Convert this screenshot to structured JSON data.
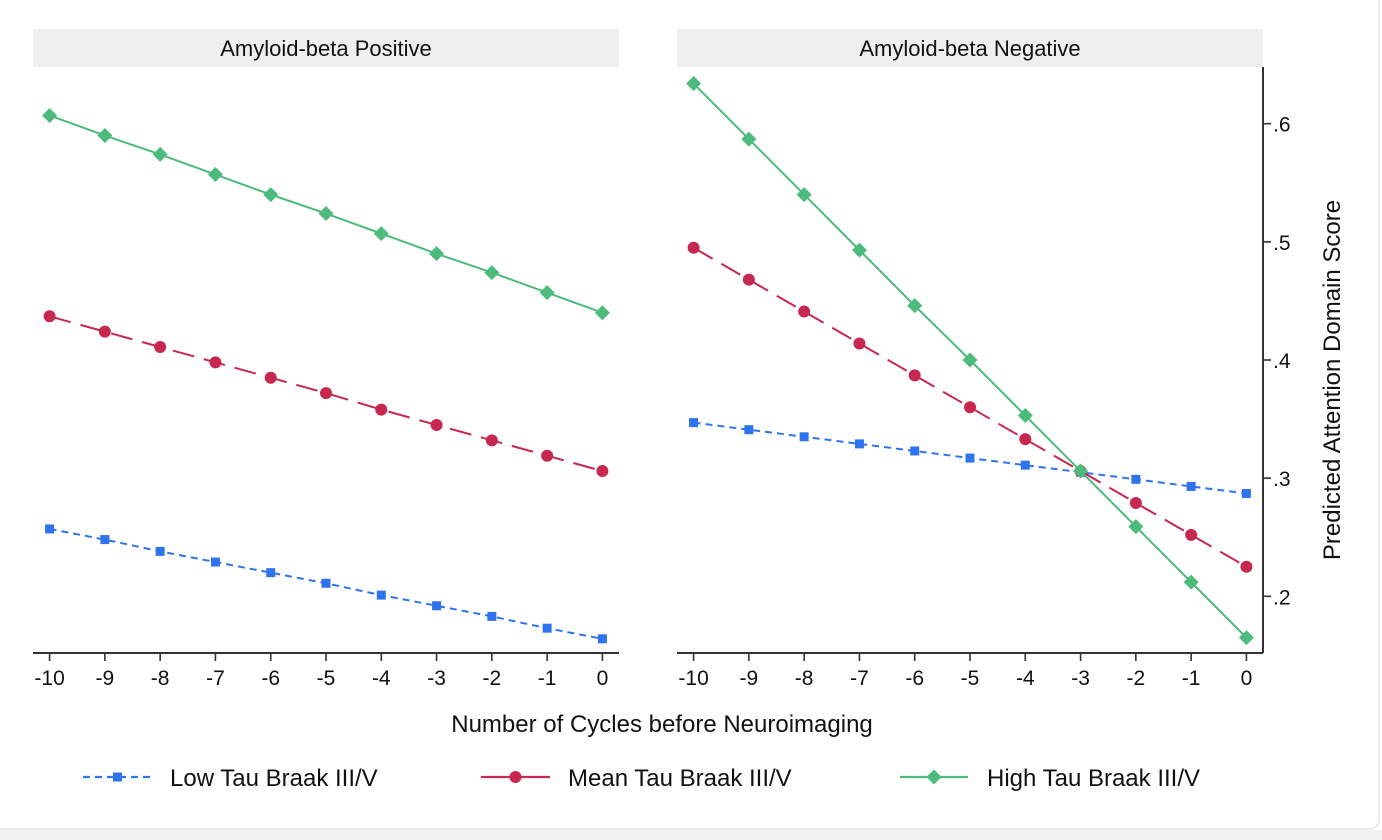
{
  "chart_data": {
    "type": "line",
    "xlabel": "Number of Cycles before Neuroimaging",
    "ylabel": "Predicted Attention Domain Score",
    "x": [
      -10,
      -9,
      -8,
      -7,
      -6,
      -5,
      -4,
      -3,
      -2,
      -1,
      0
    ],
    "x_tick_labels": [
      "-10",
      "-9",
      "-8",
      "-7",
      "-6",
      "-5",
      "-4",
      "-3",
      "-2",
      "-1",
      "0"
    ],
    "y_ticks": [
      0.2,
      0.3,
      0.4,
      0.5,
      0.6
    ],
    "y_tick_labels": [
      ".2",
      ".3",
      ".4",
      ".5",
      ".6"
    ],
    "ylim": [
      0.152,
      0.648
    ],
    "xlim": [
      -10.3,
      0.3
    ],
    "grid": false,
    "legend_position": "bottom",
    "series_styles": [
      {
        "name": "Low Tau Braak III/V",
        "color": "#2f74ee",
        "marker": "square",
        "dash": "short-dash"
      },
      {
        "name": "Mean Tau Braak III/V",
        "color": "#c6284f",
        "marker": "circle",
        "dash": "long-dash"
      },
      {
        "name": "High Tau Braak III/V",
        "color": "#4cbb7b",
        "marker": "diamond",
        "dash": "solid"
      }
    ],
    "panels": [
      {
        "title": "Amyloid-beta Positive",
        "series": [
          {
            "name": "Low Tau Braak III/V",
            "values": [
              0.257,
              0.248,
              0.238,
              0.229,
              0.22,
              0.211,
              0.201,
              0.192,
              0.183,
              0.173,
              0.164
            ]
          },
          {
            "name": "Mean Tau Braak III/V",
            "values": [
              0.437,
              0.424,
              0.411,
              0.398,
              0.385,
              0.372,
              0.358,
              0.345,
              0.332,
              0.319,
              0.306
            ]
          },
          {
            "name": "High Tau Braak III/V",
            "values": [
              0.607,
              0.59,
              0.574,
              0.557,
              0.54,
              0.524,
              0.507,
              0.49,
              0.474,
              0.457,
              0.44
            ]
          }
        ]
      },
      {
        "title": "Amyloid-beta Negative",
        "series": [
          {
            "name": "Low Tau Braak III/V",
            "values": [
              0.347,
              0.341,
              0.335,
              0.329,
              0.323,
              0.317,
              0.311,
              0.305,
              0.299,
              0.293,
              0.287
            ]
          },
          {
            "name": "Mean Tau Braak III/V",
            "values": [
              0.495,
              0.468,
              0.441,
              0.414,
              0.387,
              0.36,
              0.333,
              0.306,
              0.279,
              0.252,
              0.225
            ]
          },
          {
            "name": "High Tau Braak III/V",
            "values": [
              0.634,
              0.587,
              0.54,
              0.493,
              0.446,
              0.4,
              0.353,
              0.306,
              0.259,
              0.212,
              0.165
            ]
          }
        ]
      }
    ]
  },
  "colors": {
    "panel_header_bg": "#efefef",
    "axis": "#333333"
  }
}
